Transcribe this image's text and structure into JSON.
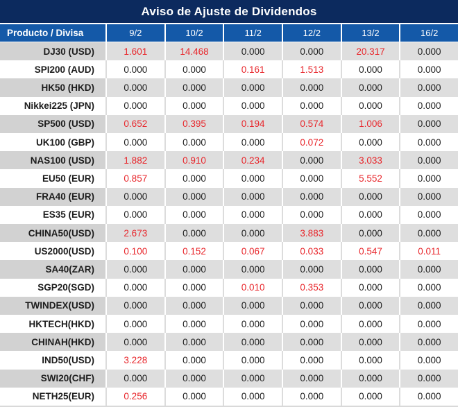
{
  "chart_data": {
    "type": "table",
    "title": "Aviso de Ajuste de Dividendos",
    "columns": [
      "Producto / Divisa",
      "9/2",
      "10/2",
      "11/2",
      "12/2",
      "13/2",
      "16/2"
    ],
    "rows": [
      {
        "product": "DJ30 (USD)",
        "values": [
          "1.601",
          "14.468",
          "0.000",
          "0.000",
          "20.317",
          "0.000"
        ]
      },
      {
        "product": "SPI200 (AUD)",
        "values": [
          "0.000",
          "0.000",
          "0.161",
          "1.513",
          "0.000",
          "0.000"
        ]
      },
      {
        "product": "HK50 (HKD)",
        "values": [
          "0.000",
          "0.000",
          "0.000",
          "0.000",
          "0.000",
          "0.000"
        ]
      },
      {
        "product": "Nikkei225 (JPN)",
        "values": [
          "0.000",
          "0.000",
          "0.000",
          "0.000",
          "0.000",
          "0.000"
        ]
      },
      {
        "product": "SP500 (USD)",
        "values": [
          "0.652",
          "0.395",
          "0.194",
          "0.574",
          "1.006",
          "0.000"
        ]
      },
      {
        "product": "UK100 (GBP)",
        "values": [
          "0.000",
          "0.000",
          "0.000",
          "0.072",
          "0.000",
          "0.000"
        ]
      },
      {
        "product": "NAS100 (USD)",
        "values": [
          "1.882",
          "0.910",
          "0.234",
          "0.000",
          "3.033",
          "0.000"
        ]
      },
      {
        "product": "EU50 (EUR)",
        "values": [
          "0.857",
          "0.000",
          "0.000",
          "0.000",
          "5.552",
          "0.000"
        ]
      },
      {
        "product": "FRA40 (EUR)",
        "values": [
          "0.000",
          "0.000",
          "0.000",
          "0.000",
          "0.000",
          "0.000"
        ]
      },
      {
        "product": "ES35 (EUR)",
        "values": [
          "0.000",
          "0.000",
          "0.000",
          "0.000",
          "0.000",
          "0.000"
        ]
      },
      {
        "product": "CHINA50(USD)",
        "values": [
          "2.673",
          "0.000",
          "0.000",
          "3.883",
          "0.000",
          "0.000"
        ]
      },
      {
        "product": "US2000(USD)",
        "values": [
          "0.100",
          "0.152",
          "0.067",
          "0.033",
          "0.547",
          "0.011"
        ]
      },
      {
        "product": "SA40(ZAR)",
        "values": [
          "0.000",
          "0.000",
          "0.000",
          "0.000",
          "0.000",
          "0.000"
        ]
      },
      {
        "product": "SGP20(SGD)",
        "values": [
          "0.000",
          "0.000",
          "0.010",
          "0.353",
          "0.000",
          "0.000"
        ]
      },
      {
        "product": "TWINDEX(USD)",
        "values": [
          "0.000",
          "0.000",
          "0.000",
          "0.000",
          "0.000",
          "0.000"
        ]
      },
      {
        "product": "HKTECH(HKD)",
        "values": [
          "0.000",
          "0.000",
          "0.000",
          "0.000",
          "0.000",
          "0.000"
        ]
      },
      {
        "product": "CHINAH(HKD)",
        "values": [
          "0.000",
          "0.000",
          "0.000",
          "0.000",
          "0.000",
          "0.000"
        ]
      },
      {
        "product": "IND50(USD)",
        "values": [
          "3.228",
          "0.000",
          "0.000",
          "0.000",
          "0.000",
          "0.000"
        ]
      },
      {
        "product": "SWI20(CHF)",
        "values": [
          "0.000",
          "0.000",
          "0.000",
          "0.000",
          "0.000",
          "0.000"
        ]
      },
      {
        "product": "NETH25(EUR)",
        "values": [
          "0.256",
          "0.000",
          "0.000",
          "0.000",
          "0.000",
          "0.000"
        ]
      }
    ],
    "layout": {
      "zero_value_text": "0.000",
      "striped_rows": true
    }
  },
  "colors": {
    "title_bg": "#0c2a5e",
    "header_bg": "#1459a8",
    "header_text": "#ffffff",
    "stripe_label_bg": "#d2d2d2",
    "stripe_value_bg": "#dedede",
    "white_row_bg": "#ffffff",
    "value_text": "#1c1c1c",
    "nonzero_value_text": "#e8262b",
    "divider": "#ffffff",
    "bottom_strip": "#d9d9d9"
  }
}
